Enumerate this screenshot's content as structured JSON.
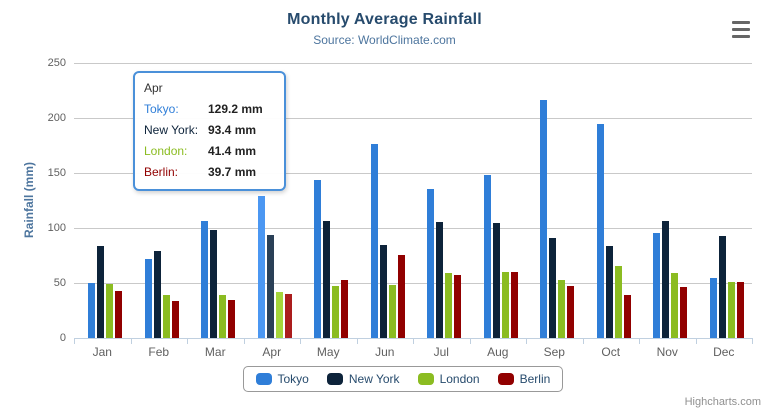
{
  "header": {
    "title": "Monthly Average Rainfall",
    "subtitle": "Source: WorldClimate.com"
  },
  "chart_data": {
    "type": "bar",
    "title": "Monthly Average Rainfall",
    "subtitle": "Source: WorldClimate.com",
    "categories": [
      "Jan",
      "Feb",
      "Mar",
      "Apr",
      "May",
      "Jun",
      "Jul",
      "Aug",
      "Sep",
      "Oct",
      "Nov",
      "Dec"
    ],
    "series": [
      {
        "name": "Tokyo",
        "color": "#2f7ed8",
        "hover_color": "#4b97f2",
        "values": [
          49.9,
          71.5,
          106.4,
          129.2,
          144.0,
          176.0,
          135.6,
          148.5,
          216.4,
          194.1,
          95.6,
          54.4
        ]
      },
      {
        "name": "New York",
        "color": "#0d233a",
        "hover_color": "#2a4057",
        "values": [
          83.6,
          78.8,
          98.5,
          93.4,
          106.0,
          84.5,
          105.0,
          104.3,
          91.2,
          83.5,
          106.6,
          92.3
        ]
      },
      {
        "name": "London",
        "color": "#8bbc21",
        "hover_color": "#a5d63b",
        "values": [
          48.9,
          38.8,
          39.3,
          41.4,
          47.0,
          48.3,
          59.0,
          59.6,
          52.4,
          65.2,
          59.3,
          51.2
        ]
      },
      {
        "name": "Berlin",
        "color": "#910000",
        "hover_color": "#ab1d1d",
        "values": [
          42.4,
          33.2,
          34.5,
          39.7,
          52.6,
          75.5,
          57.4,
          60.4,
          47.6,
          39.1,
          46.8,
          51.1
        ]
      }
    ],
    "xlabel": "",
    "ylabel": "Rainfall (mm)",
    "ylim": [
      0,
      250
    ],
    "ytick_interval": 50,
    "grid": true,
    "legend_position": "bottom",
    "hovered_category": "Apr"
  },
  "tooltip": {
    "header": "Apr",
    "border_color": "#4a90d9",
    "rows": [
      {
        "label": "Tokyo:",
        "value": "129.2 mm",
        "color": "#2f7ed8"
      },
      {
        "label": "New York:",
        "value": "93.4 mm",
        "color": "#0d233a"
      },
      {
        "label": "London:",
        "value": "41.4 mm",
        "color": "#8bbc21"
      },
      {
        "label": "Berlin:",
        "value": "39.7 mm",
        "color": "#910000"
      }
    ]
  },
  "legend": {
    "items": [
      {
        "label": "Tokyo",
        "color": "#2f7ed8"
      },
      {
        "label": "New York",
        "color": "#0d233a"
      },
      {
        "label": "London",
        "color": "#8bbc21"
      },
      {
        "label": "Berlin",
        "color": "#910000"
      }
    ]
  },
  "credit": {
    "label": "Highcharts.com"
  }
}
